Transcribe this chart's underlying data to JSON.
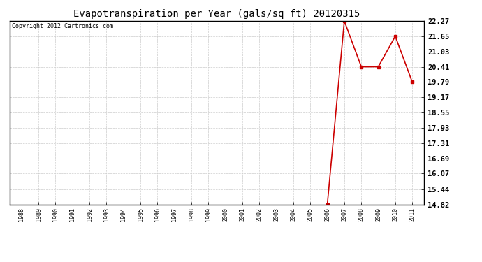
{
  "title": "Evapotranspiration per Year (gals/sq ft) 20120315",
  "copyright_text": "Copyright 2012 Cartronics.com",
  "x_years": [
    1988,
    1989,
    1990,
    1991,
    1992,
    1993,
    1994,
    1995,
    1996,
    1997,
    1998,
    1999,
    2000,
    2001,
    2002,
    2003,
    2004,
    2005,
    2006,
    2007,
    2008,
    2009,
    2010,
    2011
  ],
  "y_values": [
    null,
    null,
    null,
    null,
    null,
    null,
    null,
    null,
    null,
    null,
    null,
    null,
    null,
    null,
    null,
    null,
    null,
    null,
    14.82,
    22.27,
    20.41,
    20.41,
    21.65,
    19.79
  ],
  "line_color": "#cc0000",
  "marker": "s",
  "marker_size": 2.5,
  "bg_color": "#ffffff",
  "plot_bg_color": "#ffffff",
  "grid_color": "#cccccc",
  "y_ticks": [
    14.82,
    15.44,
    16.07,
    16.69,
    17.31,
    17.93,
    18.55,
    19.17,
    19.79,
    20.41,
    21.03,
    21.65,
    22.27
  ],
  "ylim": [
    14.82,
    22.27
  ],
  "title_fontsize": 10,
  "copyright_fontsize": 6,
  "xtick_fontsize": 6,
  "ytick_fontsize": 7.5
}
